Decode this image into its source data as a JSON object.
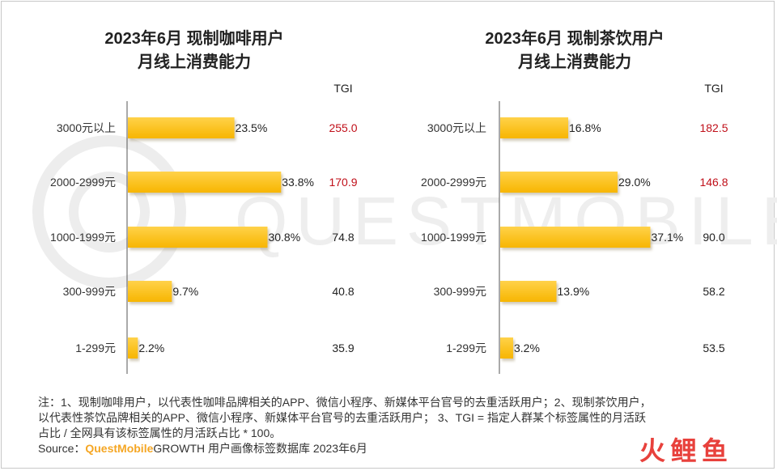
{
  "watermark_text": "QUESTMOBILE",
  "tgi_header": "TGI",
  "colors": {
    "bar_light": "#ffd24a",
    "bar_dark": "#f7b500",
    "tgi_high": "#c0101a",
    "tgi_normal": "#222222",
    "axis": "#555555",
    "source_brand": "#f5a623"
  },
  "chart_data": [
    {
      "type": "bar",
      "orientation": "horizontal",
      "title_line1": "2023年6月 现制咖啡用户",
      "title_line2": "月线上消费能力",
      "categories": [
        "3000元以上",
        "2000-2999元",
        "1000-1999元",
        "300-999元",
        "1-299元"
      ],
      "values": [
        23.5,
        33.8,
        30.8,
        9.7,
        2.2
      ],
      "value_labels": [
        "23.5%",
        "33.8%",
        "30.8%",
        "9.7%",
        "2.2%"
      ],
      "tgi": [
        "255.0",
        "170.9",
        "74.8",
        "40.8",
        "35.9"
      ],
      "tgi_highlight": [
        true,
        true,
        false,
        false,
        false
      ],
      "xlim": [
        0,
        40
      ]
    },
    {
      "type": "bar",
      "orientation": "horizontal",
      "title_line1": "2023年6月 现制茶饮用户",
      "title_line2": "月线上消费能力",
      "categories": [
        "3000元以上",
        "2000-2999元",
        "1000-1999元",
        "300-999元",
        "1-299元"
      ],
      "values": [
        16.8,
        29.0,
        37.1,
        13.9,
        3.2
      ],
      "value_labels": [
        "16.8%",
        "29.0%",
        "37.1%",
        "13.9%",
        "3.2%"
      ],
      "tgi": [
        "182.5",
        "146.8",
        "90.0",
        "58.2",
        "53.5"
      ],
      "tgi_highlight": [
        true,
        true,
        false,
        false,
        false
      ],
      "xlim": [
        0,
        40
      ]
    }
  ],
  "notes": {
    "line1": "注：1、现制咖啡用户，以代表性咖啡品牌相关的APP、微信小程序、新媒体平台官号的去重活跃用户；2、现制茶饮用户，",
    "line2": "以代表性茶饮品牌相关的APP、微信小程序、新媒体平台官号的去重活跃用户；  3、TGI = 指定人群某个标签属性的月活跃",
    "line3": "占比 / 全网具有该标签属性的月活跃占比 * 100。"
  },
  "source": {
    "prefix": "Source：",
    "brand": "QuestMobile",
    "suffix": "GROWTH 用户画像标签数据库 2023年6月"
  },
  "corner_logo": {
    "chars": [
      "火",
      "鲤",
      "鱼"
    ],
    "colors": [
      "#e8413c",
      "#e8413c",
      "#e8413c"
    ]
  }
}
